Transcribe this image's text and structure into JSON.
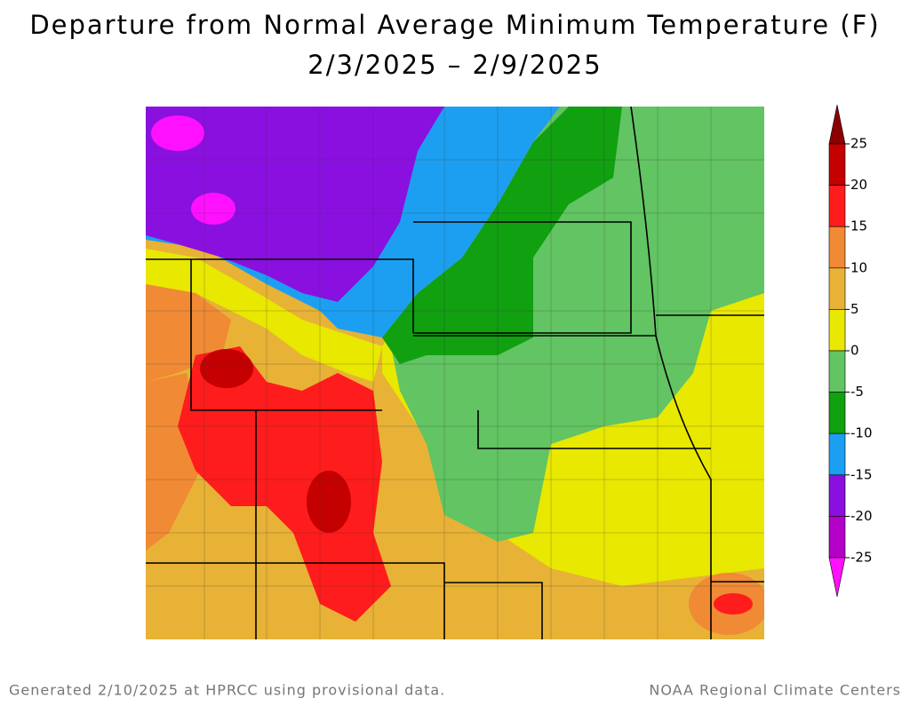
{
  "title": "Departure from Normal Average Minimum Temperature (F)",
  "subtitle": "2/3/2025 – 2/9/2025",
  "legend": {
    "ticks": [
      25,
      20,
      15,
      10,
      5,
      0,
      -5,
      -10,
      -15,
      -20,
      -25
    ],
    "colors": [
      "#8b0000",
      "#c40000",
      "#ff1c1c",
      "#f08a35",
      "#e8b236",
      "#e8e800",
      "#62c462",
      "#10a010",
      "#1c9ff0",
      "#8a10e0",
      "#b400c8",
      "#ff10ff"
    ]
  },
  "footer": {
    "left": "Generated 2/10/2025 at HPRCC using provisional data.",
    "right": "NOAA Regional Climate Centers"
  }
}
